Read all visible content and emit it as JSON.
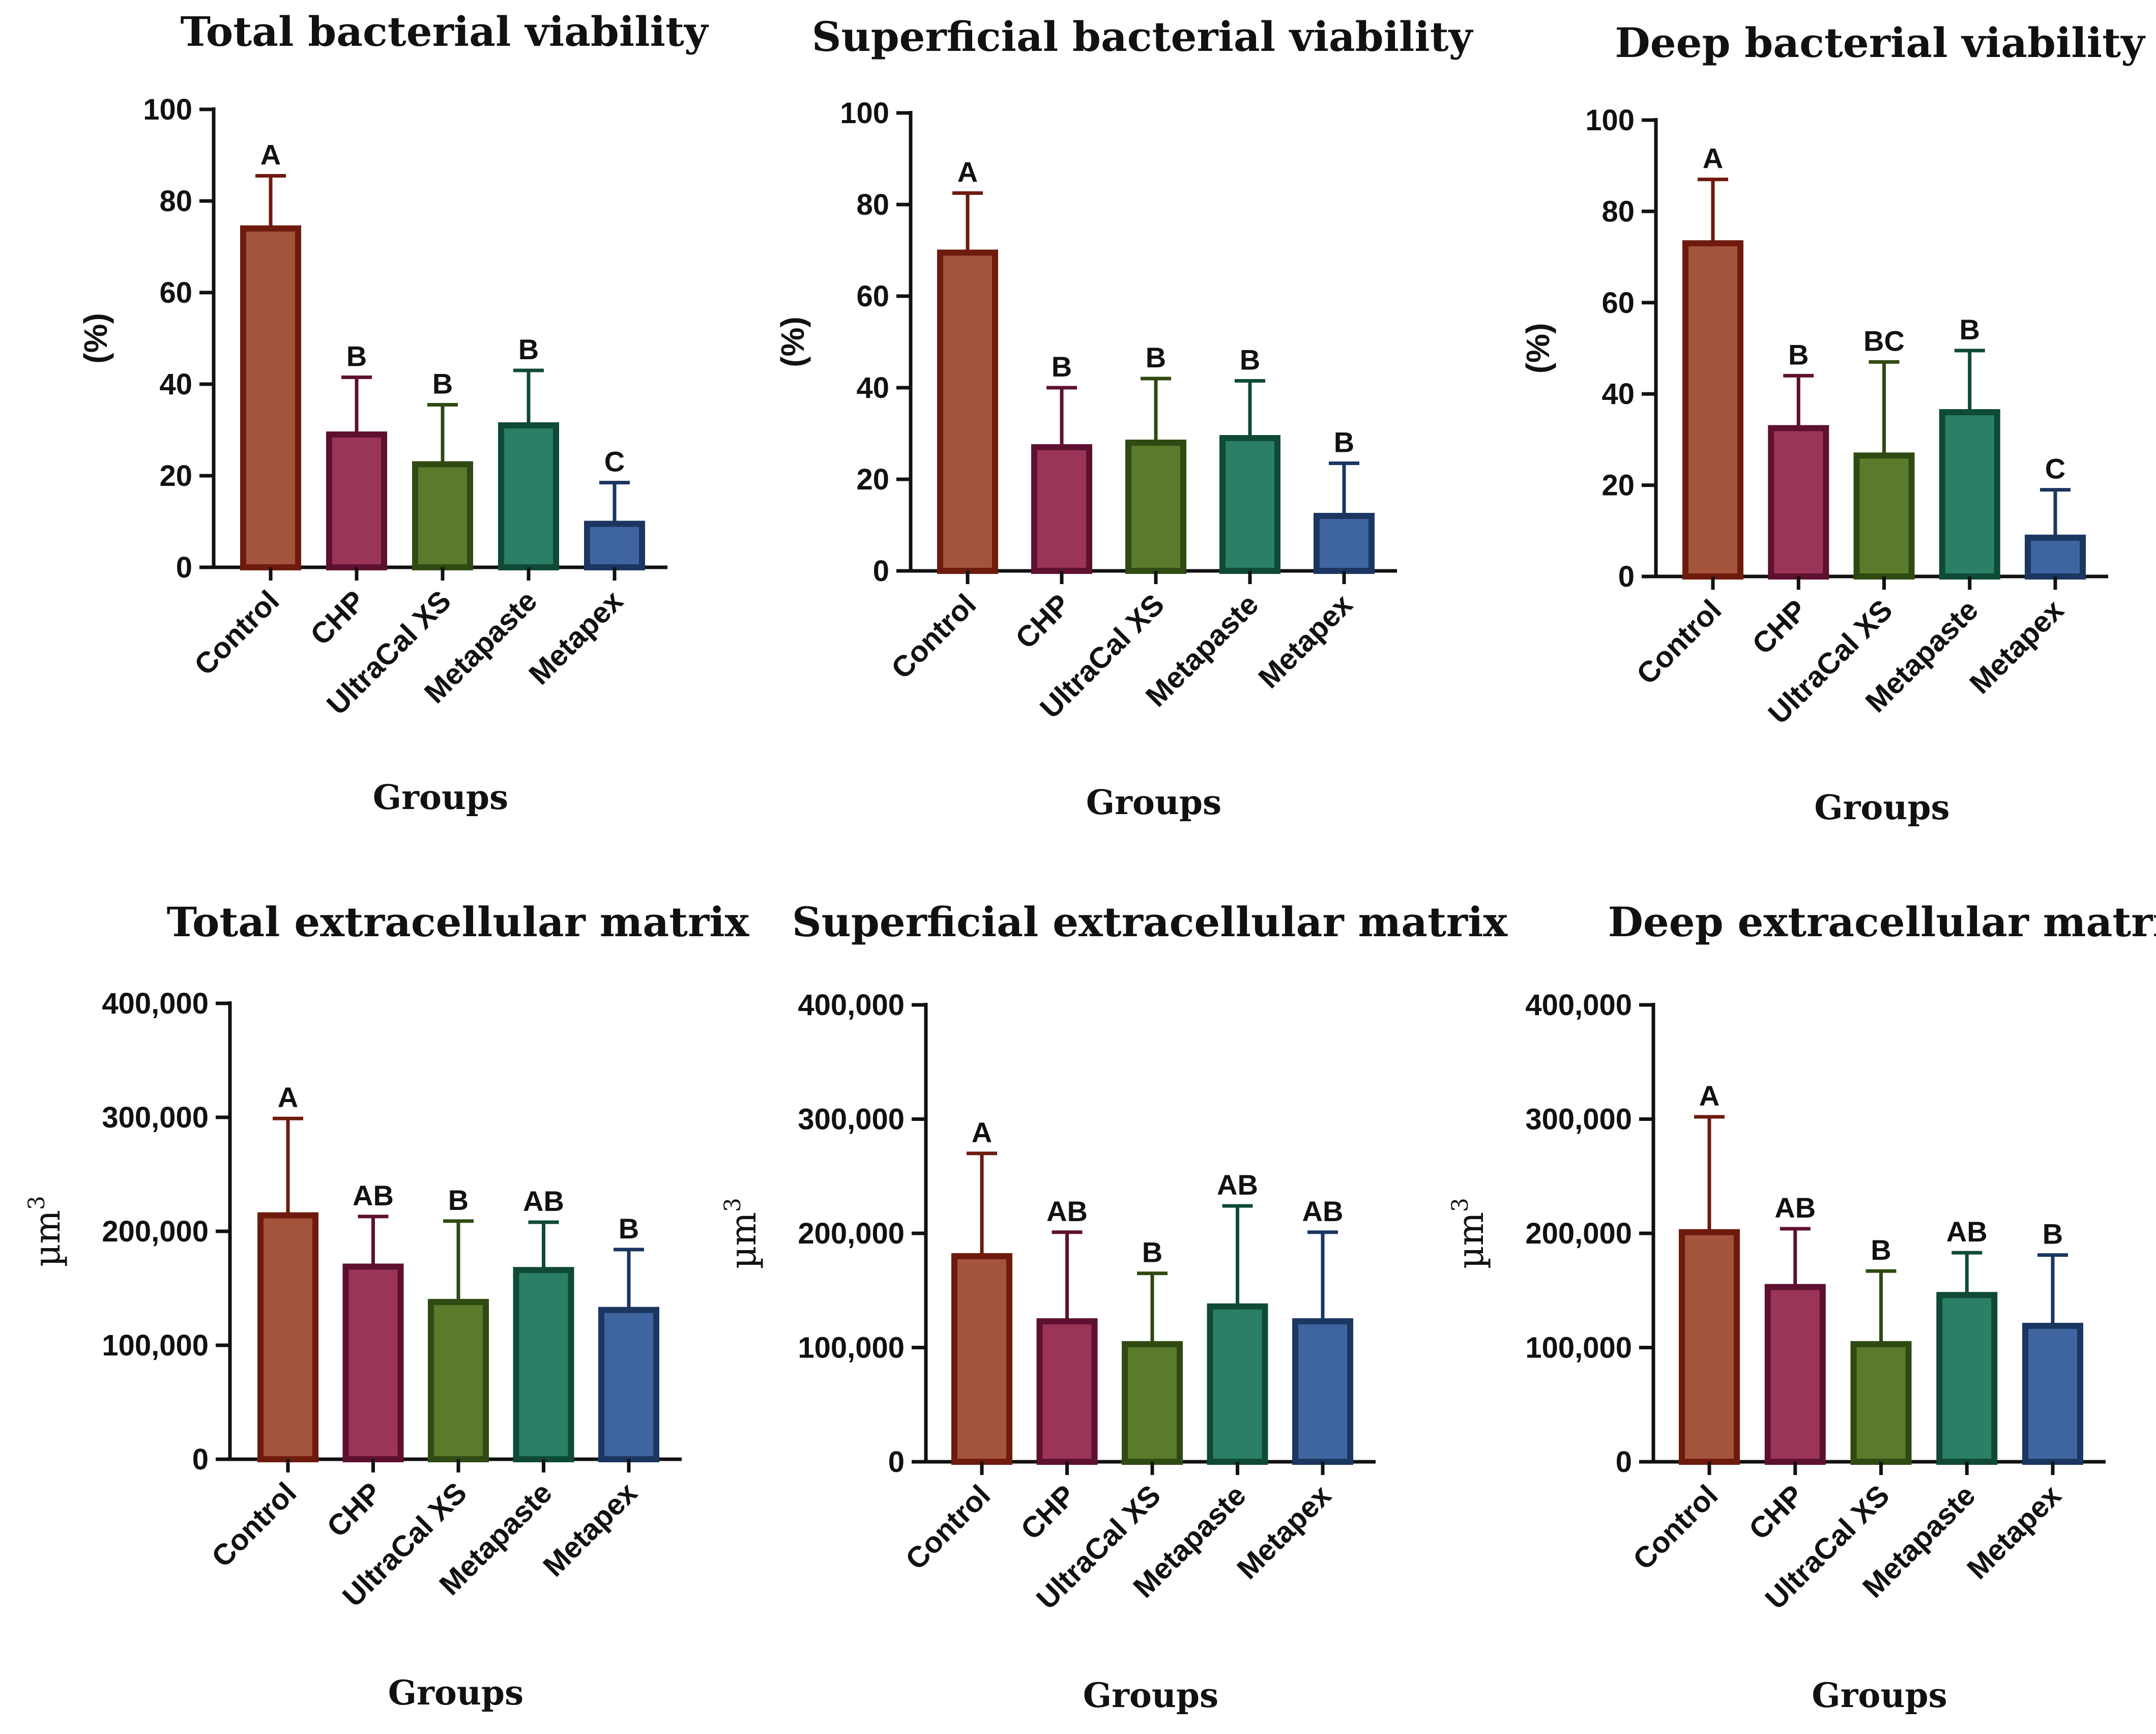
{
  "chart_data": [
    {
      "type": "bar",
      "title": "Total bacterial viability",
      "xlabel": "Groups",
      "ylabel": "(%)",
      "ylim": [
        0,
        100
      ],
      "yticks": [
        0,
        20,
        40,
        60,
        80,
        100
      ],
      "ytick_labels": [
        "0",
        "20",
        "40",
        "60",
        "80",
        "100"
      ],
      "categories": [
        "Control",
        "CHP",
        "UltraCal XS",
        "Metapaste",
        "Metapex"
      ],
      "values": [
        74,
        29,
        22.5,
        31,
        9.5
      ],
      "error_upper": [
        85.5,
        41.5,
        35.5,
        43,
        18.5
      ],
      "significance": [
        "A",
        "B",
        "B",
        "B",
        "C"
      ]
    },
    {
      "type": "bar",
      "title": "Superficial bacterial viability",
      "xlabel": "Groups",
      "ylabel": "(%)",
      "ylim": [
        0,
        100
      ],
      "yticks": [
        0,
        20,
        40,
        60,
        80,
        100
      ],
      "ytick_labels": [
        "0",
        "20",
        "40",
        "60",
        "80",
        "100"
      ],
      "categories": [
        "Control",
        "CHP",
        "UltraCal XS",
        "Metapaste",
        "Metapex"
      ],
      "values": [
        69.5,
        27,
        28,
        29,
        12
      ],
      "error_upper": [
        82.5,
        40,
        42,
        41.5,
        23.5
      ],
      "significance": [
        "A",
        "B",
        "B",
        "B",
        "B"
      ]
    },
    {
      "type": "bar",
      "title": "Deep bacterial viability",
      "xlabel": "Groups",
      "ylabel": "(%)",
      "ylim": [
        0,
        100
      ],
      "yticks": [
        0,
        20,
        40,
        60,
        80,
        100
      ],
      "ytick_labels": [
        "0",
        "20",
        "40",
        "60",
        "80",
        "100"
      ],
      "categories": [
        "Control",
        "CHP",
        "UltraCal XS",
        "Metapaste",
        "Metapex"
      ],
      "values": [
        73,
        32.5,
        26.5,
        36,
        8.5
      ],
      "error_upper": [
        87,
        44,
        47,
        49.5,
        19
      ],
      "significance": [
        "A",
        "B",
        "BC",
        "B",
        "C"
      ]
    },
    {
      "type": "bar",
      "title": "Total extracellular matrix",
      "xlabel": "Groups",
      "ylabel": "µm",
      "ylabel_sup": "3",
      "ylim": [
        0,
        400000
      ],
      "yticks": [
        0,
        100000,
        200000,
        300000,
        400000
      ],
      "ytick_labels": [
        "0",
        "100,000",
        "200,000",
        "300,000",
        "400,000"
      ],
      "categories": [
        "Control",
        "CHP",
        "UltraCal XS",
        "Metapaste",
        "Metapex"
      ],
      "values": [
        214000,
        169000,
        138000,
        166000,
        131000
      ],
      "error_upper": [
        299000,
        213000,
        209000,
        208000,
        184000
      ],
      "significance": [
        "A",
        "AB",
        "B",
        "AB",
        "B"
      ]
    },
    {
      "type": "bar",
      "title": "Superficial extracellular matrix",
      "xlabel": "Groups",
      "ylabel": "µm",
      "ylabel_sup": "3",
      "ylim": [
        0,
        400000
      ],
      "yticks": [
        0,
        100000,
        200000,
        300000,
        400000
      ],
      "ytick_labels": [
        "0",
        "100,000",
        "200,000",
        "300,000",
        "400,000"
      ],
      "categories": [
        "Control",
        "CHP",
        "UltraCal XS",
        "Metapaste",
        "Metapex"
      ],
      "values": [
        180000,
        123000,
        103000,
        136000,
        123000
      ],
      "error_upper": [
        270000,
        201000,
        165000,
        224000,
        201000
      ],
      "significance": [
        "A",
        "AB",
        "B",
        "AB",
        "AB"
      ]
    },
    {
      "type": "bar",
      "title": "Deep extracellular matrix",
      "xlabel": "Groups",
      "ylabel": "µm",
      "ylabel_sup": "3",
      "ylim": [
        0,
        400000
      ],
      "yticks": [
        0,
        100000,
        200000,
        300000,
        400000
      ],
      "ytick_labels": [
        "0",
        "100,000",
        "200,000",
        "300,000",
        "400,000"
      ],
      "categories": [
        "Control",
        "CHP",
        "UltraCal XS",
        "Metapaste",
        "Metapex"
      ],
      "values": [
        201000,
        153000,
        103000,
        146000,
        119000
      ],
      "error_upper": [
        302000,
        204000,
        167000,
        183000,
        181000
      ],
      "significance": [
        "A",
        "AB",
        "B",
        "AB",
        "B"
      ]
    }
  ],
  "colors": {
    "fills": [
      "#a3543c",
      "#9b3558",
      "#5a7a2c",
      "#2a7f66",
      "#3f65a0"
    ],
    "strokes": [
      "#6e1b0e",
      "#5e1030",
      "#2f4a12",
      "#0f4a37",
      "#1b3660"
    ]
  }
}
